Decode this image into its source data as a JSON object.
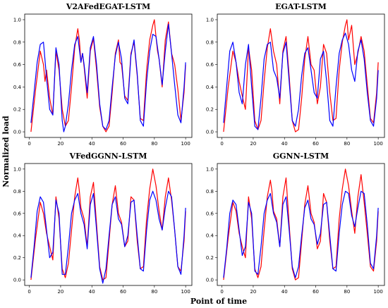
{
  "figure": {
    "ylabel": "Normalized load",
    "xlabel": "Point of time"
  },
  "chart_data": [
    {
      "type": "line",
      "title": "V2AFedEGAT-LSTM",
      "xlim": [
        -3,
        104
      ],
      "ylim": [
        -0.05,
        1.05
      ],
      "xticks": [
        0,
        20,
        40,
        60,
        80,
        100
      ],
      "yticks": [
        0.0,
        0.2,
        0.4,
        0.6,
        0.8,
        1.0
      ],
      "xtick_labels": [
        "0",
        "20",
        "40",
        "60",
        "80",
        "100"
      ],
      "ytick_labels": [
        "0.0",
        "0.2",
        "0.4",
        "0.6",
        "0.8",
        "1.0"
      ],
      "series": [
        {
          "color": "#ff0000",
          "x": [
            1,
            4,
            7,
            9,
            10,
            11,
            13,
            15,
            17,
            19,
            21,
            23,
            25,
            27,
            29,
            31,
            32,
            33,
            34,
            35,
            37,
            39,
            41,
            43,
            45,
            47,
            49,
            51,
            53,
            55,
            57,
            58,
            59,
            61,
            63,
            65,
            67,
            69,
            71,
            73,
            75,
            77,
            79,
            80,
            81,
            82,
            83,
            85,
            87,
            89,
            91,
            93,
            95,
            97,
            99,
            100
          ],
          "y": [
            0.0,
            0.38,
            0.72,
            0.6,
            0.45,
            0.55,
            0.3,
            0.15,
            0.72,
            0.55,
            0.2,
            0.05,
            0.1,
            0.4,
            0.75,
            0.92,
            0.82,
            0.62,
            0.7,
            0.58,
            0.3,
            0.72,
            0.83,
            0.55,
            0.22,
            0.05,
            0.0,
            0.05,
            0.35,
            0.7,
            0.82,
            0.62,
            0.6,
            0.32,
            0.28,
            0.7,
            0.8,
            0.5,
            0.12,
            0.1,
            0.55,
            0.82,
            0.95,
            1.0,
            0.85,
            0.72,
            0.65,
            0.4,
            0.82,
            0.98,
            0.7,
            0.6,
            0.38,
            0.1,
            0.35,
            0.6
          ]
        },
        {
          "color": "#0000ff",
          "x": [
            1,
            3,
            5,
            7,
            9,
            11,
            13,
            15,
            17,
            19,
            21,
            22,
            23,
            25,
            27,
            29,
            31,
            33,
            34,
            35,
            37,
            39,
            41,
            43,
            45,
            47,
            49,
            51,
            53,
            55,
            57,
            59,
            61,
            63,
            65,
            67,
            69,
            71,
            73,
            75,
            77,
            79,
            81,
            83,
            85,
            87,
            89,
            91,
            93,
            95,
            97,
            99,
            100
          ],
          "y": [
            0.08,
            0.35,
            0.62,
            0.78,
            0.8,
            0.48,
            0.2,
            0.15,
            0.75,
            0.6,
            0.1,
            0.0,
            0.05,
            0.25,
            0.55,
            0.78,
            0.85,
            0.62,
            0.7,
            0.6,
            0.35,
            0.75,
            0.85,
            0.6,
            0.25,
            0.05,
            0.02,
            0.1,
            0.4,
            0.68,
            0.8,
            0.65,
            0.3,
            0.25,
            0.68,
            0.82,
            0.52,
            0.1,
            0.05,
            0.45,
            0.72,
            0.87,
            0.85,
            0.65,
            0.42,
            0.72,
            0.96,
            0.7,
            0.42,
            0.15,
            0.08,
            0.4,
            0.62
          ]
        }
      ]
    },
    {
      "type": "line",
      "title": "EGAT-LSTM",
      "xlim": [
        -3,
        104
      ],
      "ylim": [
        -0.05,
        1.05
      ],
      "xticks": [
        0,
        20,
        40,
        60,
        80,
        100
      ],
      "yticks": [
        0.0,
        0.2,
        0.4,
        0.6,
        0.8,
        1.0
      ],
      "xtick_labels": [
        "0",
        "20",
        "40",
        "60",
        "80",
        "100"
      ],
      "ytick_labels": [
        "0.0",
        "0.2",
        "0.4",
        "0.6",
        "0.8",
        "1.0"
      ],
      "series": [
        {
          "color": "#ff0000",
          "x": [
            1,
            4,
            7,
            9,
            11,
            13,
            15,
            17,
            19,
            21,
            23,
            25,
            27,
            29,
            31,
            33,
            35,
            37,
            39,
            41,
            43,
            45,
            47,
            49,
            51,
            53,
            55,
            57,
            59,
            61,
            63,
            65,
            67,
            69,
            71,
            73,
            75,
            77,
            79,
            80,
            81,
            83,
            85,
            87,
            89,
            91,
            93,
            95,
            97,
            99,
            100
          ],
          "y": [
            0.0,
            0.4,
            0.72,
            0.62,
            0.45,
            0.32,
            0.2,
            0.75,
            0.55,
            0.1,
            0.02,
            0.1,
            0.45,
            0.75,
            0.92,
            0.72,
            0.6,
            0.25,
            0.72,
            0.85,
            0.5,
            0.1,
            0.0,
            0.02,
            0.3,
            0.65,
            0.85,
            0.6,
            0.55,
            0.25,
            0.4,
            0.78,
            0.7,
            0.35,
            0.1,
            0.12,
            0.55,
            0.8,
            0.95,
            1.0,
            0.82,
            0.95,
            0.6,
            0.7,
            0.85,
            0.72,
            0.42,
            0.12,
            0.08,
            0.35,
            0.62
          ]
        },
        {
          "color": "#0000ff",
          "x": [
            1,
            3,
            5,
            7,
            9,
            11,
            13,
            15,
            17,
            19,
            21,
            23,
            25,
            27,
            29,
            31,
            33,
            35,
            37,
            39,
            41,
            43,
            45,
            47,
            49,
            51,
            53,
            55,
            57,
            59,
            61,
            63,
            65,
            67,
            69,
            71,
            73,
            75,
            77,
            79,
            81,
            83,
            85,
            87,
            89,
            91,
            93,
            95,
            97,
            99,
            100
          ],
          "y": [
            0.08,
            0.4,
            0.72,
            0.8,
            0.62,
            0.35,
            0.25,
            0.6,
            0.78,
            0.4,
            0.05,
            0.02,
            0.3,
            0.65,
            0.78,
            0.8,
            0.55,
            0.48,
            0.3,
            0.7,
            0.8,
            0.45,
            0.1,
            0.05,
            0.2,
            0.5,
            0.7,
            0.75,
            0.55,
            0.35,
            0.3,
            0.65,
            0.72,
            0.45,
            0.1,
            0.05,
            0.4,
            0.7,
            0.82,
            0.88,
            0.78,
            0.55,
            0.45,
            0.72,
            0.82,
            0.65,
            0.35,
            0.1,
            0.05,
            0.3,
            0.55
          ]
        }
      ]
    },
    {
      "type": "line",
      "title": "VFedGGNN-LSTM",
      "xlim": [
        -3,
        104
      ],
      "ylim": [
        -0.05,
        1.05
      ],
      "xticks": [
        0,
        20,
        40,
        60,
        80,
        100
      ],
      "yticks": [
        0.0,
        0.2,
        0.4,
        0.6,
        0.8,
        1.0
      ],
      "xtick_labels": [
        "0",
        "20",
        "40",
        "60",
        "80",
        "100"
      ],
      "ytick_labels": [
        "0.0",
        "0.2",
        "0.4",
        "0.6",
        "0.8",
        "1.0"
      ],
      "series": [
        {
          "color": "#ff0000",
          "x": [
            1,
            4,
            7,
            9,
            11,
            13,
            15,
            17,
            19,
            21,
            23,
            25,
            27,
            29,
            31,
            32,
            33,
            35,
            37,
            39,
            41,
            43,
            45,
            47,
            49,
            51,
            53,
            55,
            57,
            59,
            61,
            63,
            65,
            67,
            69,
            71,
            73,
            75,
            77,
            79,
            81,
            83,
            85,
            87,
            89,
            91,
            93,
            95,
            97,
            99,
            100
          ],
          "y": [
            0.0,
            0.38,
            0.7,
            0.6,
            0.42,
            0.3,
            0.18,
            0.75,
            0.55,
            0.1,
            0.02,
            0.15,
            0.45,
            0.75,
            0.92,
            0.8,
            0.65,
            0.55,
            0.3,
            0.75,
            0.88,
            0.5,
            0.12,
            0.0,
            0.02,
            0.35,
            0.68,
            0.85,
            0.6,
            0.52,
            0.3,
            0.35,
            0.75,
            0.72,
            0.35,
            0.1,
            0.12,
            0.55,
            0.82,
            1.0,
            0.85,
            0.62,
            0.45,
            0.75,
            0.92,
            0.72,
            0.45,
            0.12,
            0.08,
            0.35,
            0.62
          ]
        },
        {
          "color": "#0000ff",
          "x": [
            1,
            3,
            5,
            7,
            9,
            11,
            13,
            15,
            17,
            19,
            21,
            23,
            25,
            27,
            29,
            31,
            33,
            35,
            37,
            39,
            41,
            43,
            45,
            47,
            49,
            51,
            53,
            55,
            57,
            59,
            61,
            63,
            65,
            67,
            69,
            71,
            73,
            75,
            77,
            79,
            81,
            83,
            85,
            87,
            89,
            91,
            93,
            95,
            97,
            99,
            100
          ],
          "y": [
            0.02,
            0.3,
            0.62,
            0.75,
            0.7,
            0.45,
            0.2,
            0.25,
            0.72,
            0.6,
            0.05,
            0.05,
            0.3,
            0.6,
            0.72,
            0.78,
            0.6,
            0.5,
            0.28,
            0.68,
            0.78,
            0.45,
            0.1,
            -0.03,
            0.1,
            0.4,
            0.68,
            0.75,
            0.55,
            0.5,
            0.3,
            0.4,
            0.7,
            0.72,
            0.4,
            0.1,
            0.08,
            0.45,
            0.72,
            0.8,
            0.72,
            0.55,
            0.45,
            0.65,
            0.8,
            0.75,
            0.45,
            0.12,
            0.05,
            0.4,
            0.65
          ]
        }
      ]
    },
    {
      "type": "line",
      "title": "GGNN-LSTM",
      "xlim": [
        -3,
        104
      ],
      "ylim": [
        -0.05,
        1.05
      ],
      "xticks": [
        0,
        20,
        40,
        60,
        80,
        100
      ],
      "yticks": [
        0.0,
        0.2,
        0.4,
        0.6,
        0.8,
        1.0
      ],
      "xtick_labels": [
        "0",
        "20",
        "40",
        "60",
        "80",
        "100"
      ],
      "ytick_labels": [
        "0.0",
        "0.2",
        "0.4",
        "0.6",
        "0.8",
        "1.0"
      ],
      "series": [
        {
          "color": "#ff0000",
          "x": [
            1,
            4,
            7,
            9,
            11,
            13,
            15,
            17,
            19,
            21,
            23,
            25,
            27,
            29,
            31,
            32,
            33,
            35,
            37,
            39,
            41,
            43,
            45,
            47,
            49,
            51,
            53,
            55,
            57,
            59,
            61,
            63,
            65,
            67,
            69,
            71,
            73,
            75,
            77,
            79,
            81,
            83,
            85,
            87,
            89,
            91,
            93,
            95,
            97,
            99,
            100
          ],
          "y": [
            0.0,
            0.38,
            0.7,
            0.62,
            0.42,
            0.3,
            0.2,
            0.75,
            0.55,
            0.1,
            0.02,
            0.12,
            0.45,
            0.75,
            0.9,
            0.8,
            0.62,
            0.55,
            0.3,
            0.75,
            0.92,
            0.5,
            0.1,
            0.0,
            0.02,
            0.35,
            0.68,
            0.85,
            0.6,
            0.52,
            0.28,
            0.35,
            0.78,
            0.7,
            0.35,
            0.1,
            0.12,
            0.55,
            0.82,
            1.0,
            0.85,
            0.62,
            0.42,
            0.75,
            0.95,
            0.7,
            0.42,
            0.12,
            0.08,
            0.35,
            0.62
          ]
        },
        {
          "color": "#0000ff",
          "x": [
            1,
            3,
            5,
            7,
            9,
            11,
            13,
            15,
            17,
            19,
            21,
            23,
            25,
            27,
            29,
            31,
            33,
            35,
            37,
            39,
            41,
            43,
            45,
            47,
            49,
            51,
            53,
            55,
            57,
            59,
            61,
            63,
            65,
            67,
            69,
            71,
            73,
            75,
            77,
            79,
            81,
            83,
            85,
            87,
            89,
            91,
            93,
            95,
            97,
            99,
            100
          ],
          "y": [
            0.02,
            0.28,
            0.6,
            0.72,
            0.68,
            0.45,
            0.22,
            0.3,
            0.7,
            0.6,
            0.08,
            0.05,
            0.3,
            0.6,
            0.72,
            0.78,
            0.6,
            0.52,
            0.3,
            0.68,
            0.75,
            0.45,
            0.12,
            0.02,
            0.12,
            0.4,
            0.65,
            0.72,
            0.55,
            0.5,
            0.32,
            0.42,
            0.68,
            0.7,
            0.4,
            0.1,
            0.08,
            0.42,
            0.68,
            0.8,
            0.78,
            0.58,
            0.48,
            0.65,
            0.8,
            0.78,
            0.5,
            0.15,
            0.1,
            0.4,
            0.65
          ]
        }
      ]
    }
  ]
}
